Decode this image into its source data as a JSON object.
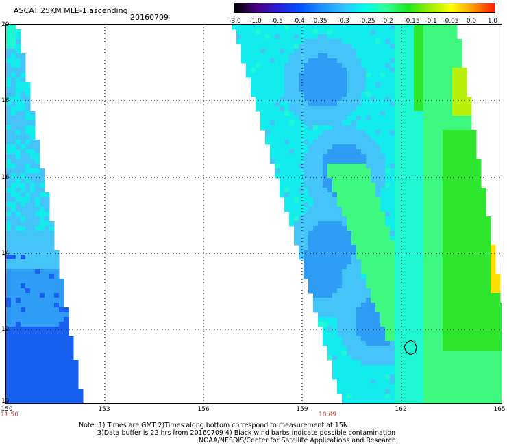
{
  "header": {
    "title": "ASCAT 25KM MLE-1 ascending",
    "date": "20160709"
  },
  "colorbar": {
    "tick_labels": [
      "-3.0",
      "-1.0",
      "-0.5",
      "-0.4",
      "-0.35",
      "-0.3",
      "-0.25",
      "-0.2",
      "-0.15",
      "-0.1",
      "-0.05",
      "0.0",
      "1.0"
    ],
    "colors": [
      "#000000",
      "#4b0082",
      "#2a1fd6",
      "#0050ff",
      "#1e90ff",
      "#2fc0ff",
      "#00ffee",
      "#33ff99",
      "#22e622",
      "#99f000",
      "#ffff00",
      "#ff9900",
      "#ff1a00"
    ]
  },
  "map": {
    "y_axis_labels": [
      "20",
      "18",
      "16",
      "14",
      "12",
      "10"
    ],
    "x_axis_labels": [
      "150",
      "153",
      "156",
      "159",
      "162",
      "165"
    ],
    "time_labels": [
      "11:50",
      "10:09"
    ],
    "time_label_color": "#c0392b",
    "palette": {
      "blue_deep": "#1760f0",
      "blue_mid": "#2f9cf5",
      "blue_light": "#44c4f8",
      "cyan": "#12ecec",
      "aqua": "#1ff7d2",
      "green_light": "#3ef87f",
      "green": "#2ee62e",
      "yellow_green": "#b7f10a",
      "yellow": "#ffde00"
    }
  },
  "notes": {
    "line1": "Note: 1) Times are GMT 2)Times along bottom correspond to measurement at 15N",
    "line2": "3)Data buffer is 22 hrs from 20160709 4) Black wind barbs indicate possible contamination",
    "line3": "NOAA/NESDIS/Center for Satellite Applications and Research"
  }
}
